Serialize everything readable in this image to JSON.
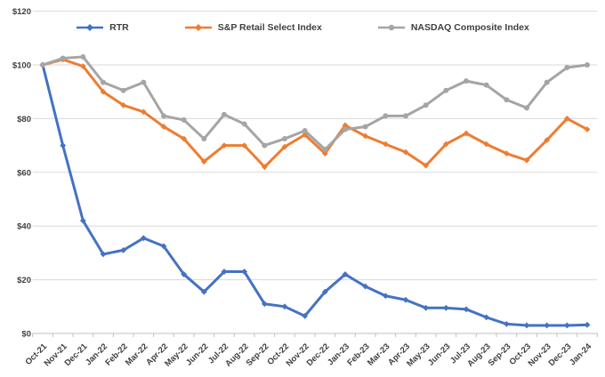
{
  "chart_data": {
    "type": "line",
    "title": "",
    "xlabel": "",
    "ylabel": "",
    "categories": [
      "Oct-21",
      "Nov-21",
      "Dec-21",
      "Jan-22",
      "Feb-22",
      "Mar-22",
      "Apr-22",
      "May-22",
      "Jun-22",
      "Jul-22",
      "Aug-22",
      "Sep-22",
      "Oct-22",
      "Nov-22",
      "Dec-22",
      "Jan-23",
      "Feb-23",
      "Mar-23",
      "Apr-23",
      "May-23",
      "Jun-23",
      "Jul-23",
      "Aug-23",
      "Sep-23",
      "Oct-23",
      "Nov-23",
      "Dec-23",
      "Jan-24"
    ],
    "series": [
      {
        "name": "RTR",
        "color": "#4472C4",
        "marker": "diamond",
        "values": [
          100,
          70,
          42,
          29.5,
          31,
          35.5,
          32.5,
          22,
          15.5,
          23,
          23,
          11,
          10,
          6.5,
          15.5,
          22,
          17.5,
          14,
          12.5,
          9.5,
          9.5,
          9,
          6,
          3.5,
          3,
          3,
          3,
          3.2
        ]
      },
      {
        "name": "S&P Retail Select Index",
        "color": "#ED7D31",
        "marker": "diamond",
        "values": [
          100,
          102,
          99.5,
          90,
          85,
          82.5,
          77,
          72.5,
          64,
          70,
          70,
          62,
          69.5,
          74,
          67,
          77.5,
          73.5,
          70.5,
          67.5,
          62.5,
          70.5,
          74.5,
          70.5,
          67,
          64.5,
          72,
          80,
          76
        ]
      },
      {
        "name": "NASDAQ Composite Index",
        "color": "#A5A5A5",
        "marker": "circle",
        "values": [
          100,
          102.5,
          103,
          93.5,
          90.5,
          93.5,
          81,
          79.5,
          72.5,
          81.5,
          78,
          70,
          72.5,
          75.5,
          68.5,
          76,
          77,
          81,
          81,
          85,
          90.5,
          94,
          92.5,
          87,
          84,
          93.5,
          99,
          100
        ]
      }
    ],
    "y_axis": {
      "min": 0,
      "max": 120,
      "ticks": [
        0,
        20,
        40,
        60,
        80,
        100,
        120
      ],
      "tick_labels": [
        "$0",
        "$20",
        "$40",
        "$60",
        "$80",
        "$100",
        "$120"
      ]
    },
    "x_axis": {
      "label_rotation_deg": -45
    },
    "legend_position": "top",
    "grid": "horizontal",
    "colors": {
      "background": "#FFFFFF",
      "gridline": "#D9D9D9",
      "axis": "#BFBFBF",
      "text": "#404040"
    }
  }
}
